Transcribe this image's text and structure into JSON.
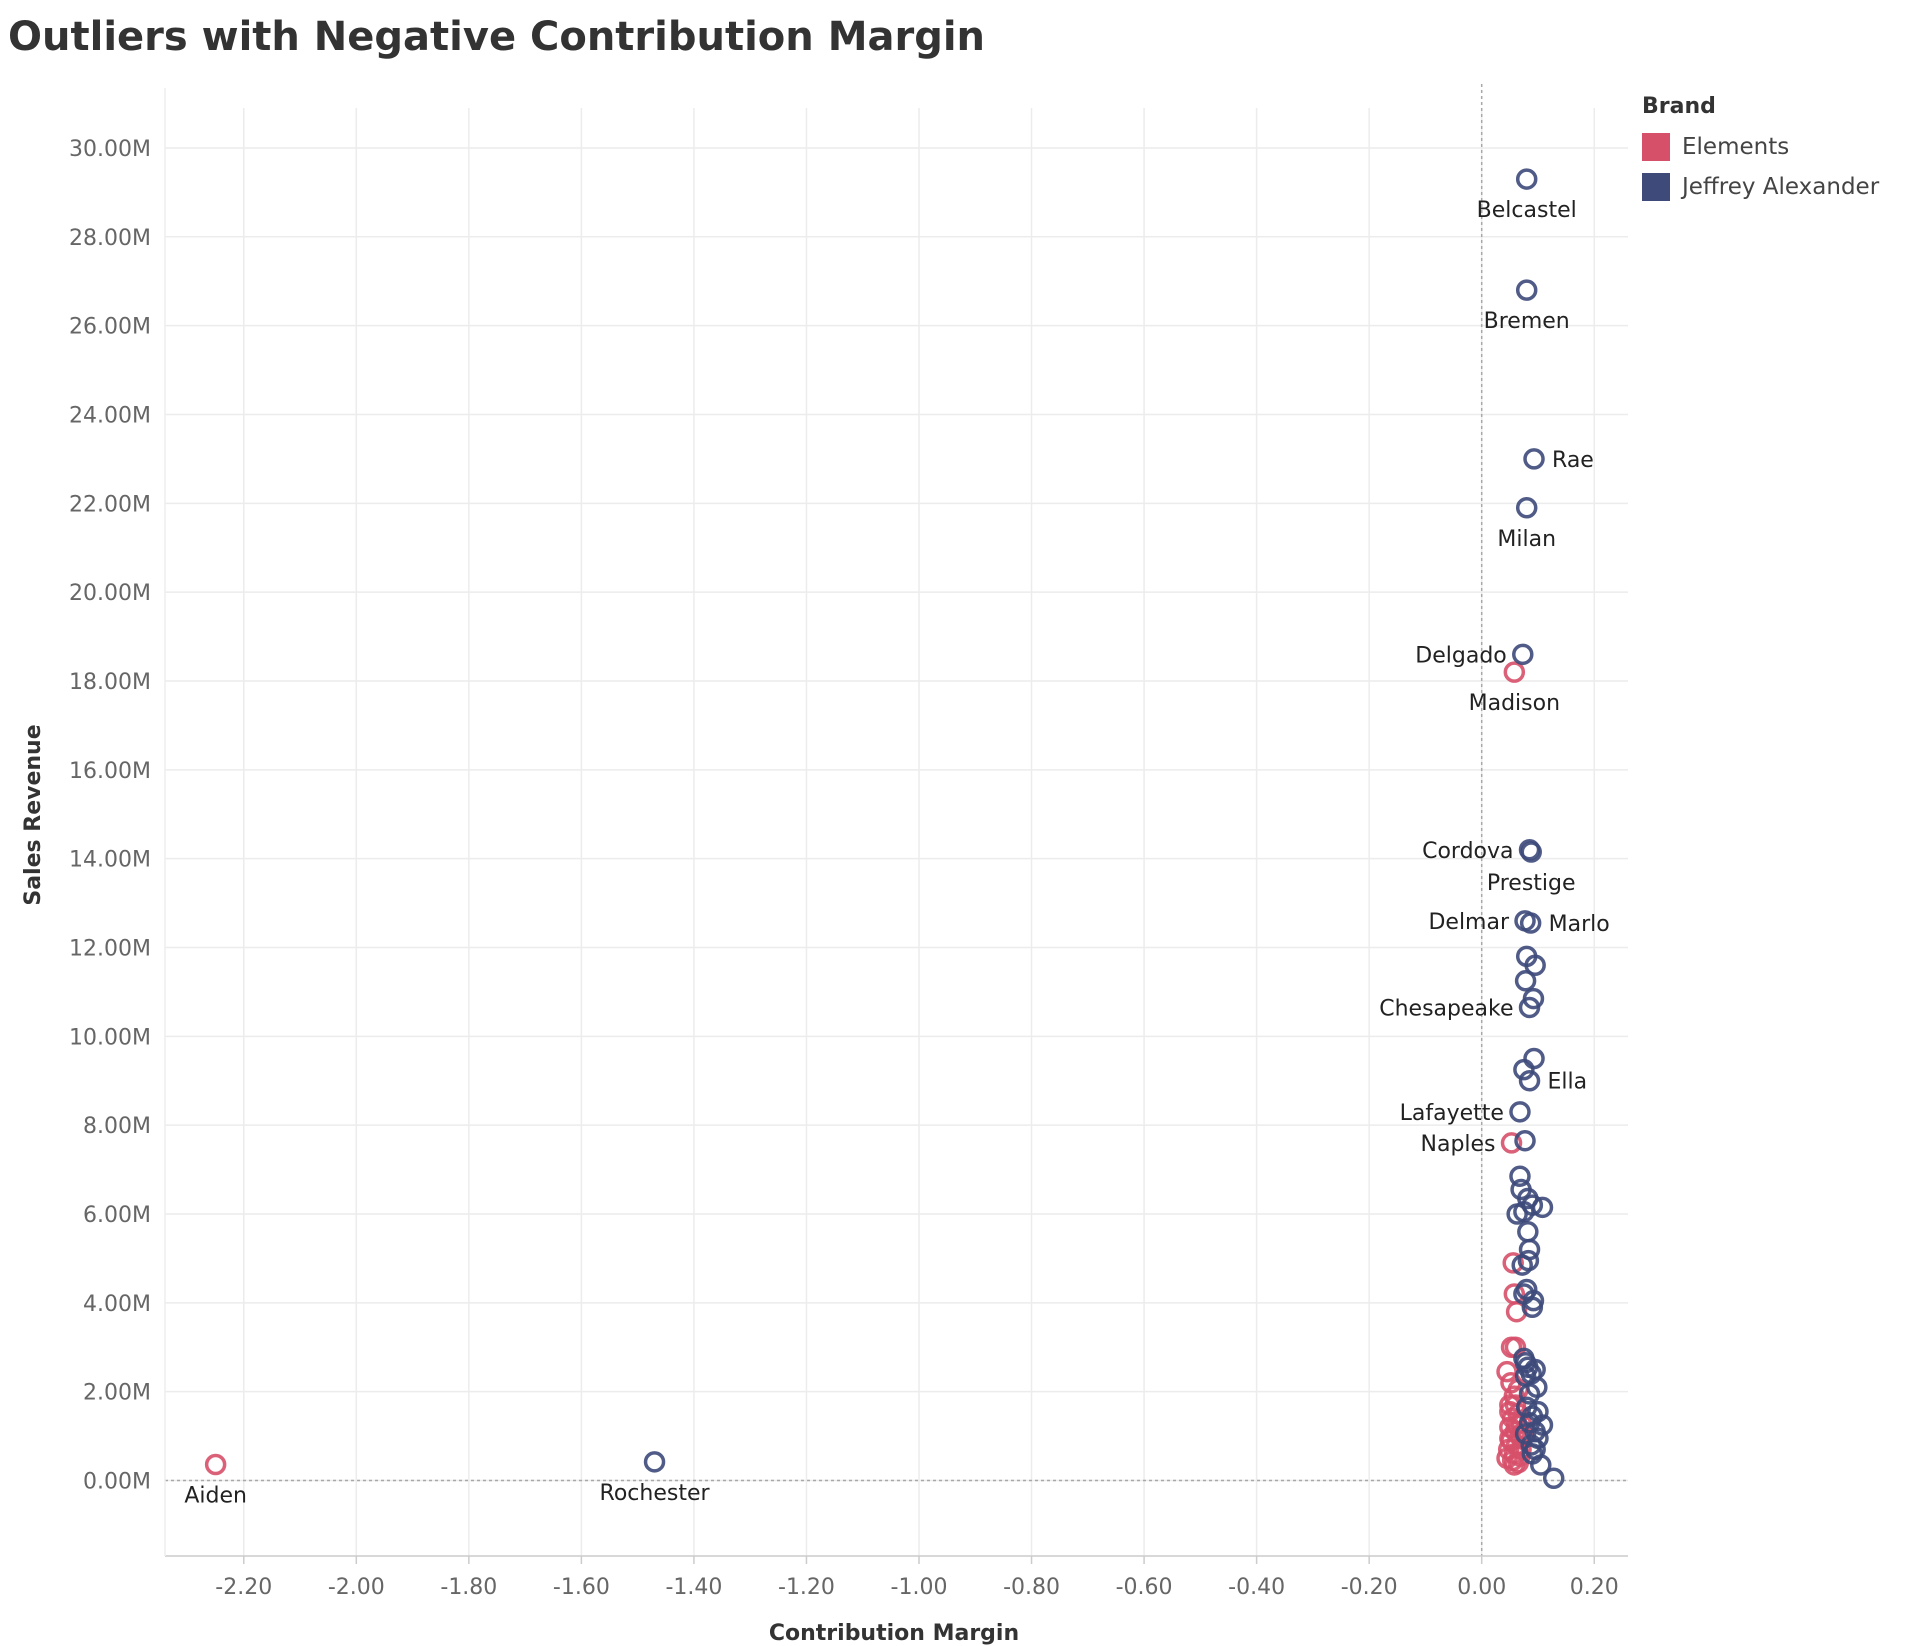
{
  "title": "Outliers with Negative Contribution Margin",
  "legend": {
    "title": "Brand",
    "items": [
      {
        "label": "Elements",
        "color": "#d7506a"
      },
      {
        "label": "Jeffrey Alexander",
        "color": "#3d4a7a"
      }
    ]
  },
  "chart_data": {
    "type": "scatter",
    "title": "Outliers with Negative Contribution Margin",
    "xlabel": "Contribution Margin",
    "ylabel": "Sales Revenue",
    "xlim": [
      -2.34,
      0.26
    ],
    "ylim": [
      -1700000,
      30900000
    ],
    "x_ticks": [
      {
        "value": -2.2,
        "label": "-2.20"
      },
      {
        "value": -2.0,
        "label": "-2.00"
      },
      {
        "value": -1.8,
        "label": "-1.80"
      },
      {
        "value": -1.6,
        "label": "-1.60"
      },
      {
        "value": -1.4,
        "label": "-1.40"
      },
      {
        "value": -1.2,
        "label": "-1.20"
      },
      {
        "value": -1.0,
        "label": "-1.00"
      },
      {
        "value": -0.8,
        "label": "-0.80"
      },
      {
        "value": -0.6,
        "label": "-0.60"
      },
      {
        "value": -0.4,
        "label": "-0.40"
      },
      {
        "value": -0.2,
        "label": "-0.20"
      },
      {
        "value": 0.0,
        "label": "0.00"
      },
      {
        "value": 0.2,
        "label": "0.20"
      }
    ],
    "y_ticks": [
      {
        "value": 0,
        "label": "0.00M"
      },
      {
        "value": 2000000,
        "label": "2.00M"
      },
      {
        "value": 4000000,
        "label": "4.00M"
      },
      {
        "value": 6000000,
        "label": "6.00M"
      },
      {
        "value": 8000000,
        "label": "8.00M"
      },
      {
        "value": 10000000,
        "label": "10.00M"
      },
      {
        "value": 12000000,
        "label": "12.00M"
      },
      {
        "value": 14000000,
        "label": "14.00M"
      },
      {
        "value": 16000000,
        "label": "16.00M"
      },
      {
        "value": 18000000,
        "label": "18.00M"
      },
      {
        "value": 20000000,
        "label": "20.00M"
      },
      {
        "value": 22000000,
        "label": "22.00M"
      },
      {
        "value": 24000000,
        "label": "24.00M"
      },
      {
        "value": 26000000,
        "label": "26.00M"
      },
      {
        "value": 28000000,
        "label": "28.00M"
      },
      {
        "value": 30000000,
        "label": "30.00M"
      }
    ],
    "grid": true,
    "legend_position": "top-right",
    "reference_lines": {
      "x": 0,
      "y": 0
    },
    "series": [
      {
        "name": "Elements",
        "color": "#d7506a",
        "points": [
          {
            "x": -2.25,
            "y": 360000,
            "label": "Aiden",
            "label_pos": "below"
          },
          {
            "x": 0.058,
            "y": 18200000,
            "label": "Madison",
            "label_pos": "below"
          },
          {
            "x": 0.053,
            "y": 7600000,
            "label": "Naples",
            "label_pos": "left"
          },
          {
            "x": 0.056,
            "y": 4900000
          },
          {
            "x": 0.058,
            "y": 4200000
          },
          {
            "x": 0.062,
            "y": 3800000
          },
          {
            "x": 0.053,
            "y": 3000000
          },
          {
            "x": 0.06,
            "y": 3000000
          },
          {
            "x": 0.045,
            "y": 2450000
          },
          {
            "x": 0.052,
            "y": 2200000
          },
          {
            "x": 0.065,
            "y": 2050000
          },
          {
            "x": 0.058,
            "y": 1900000
          },
          {
            "x": 0.06,
            "y": 1700000
          },
          {
            "x": 0.05,
            "y": 1550000
          },
          {
            "x": 0.055,
            "y": 1400000
          },
          {
            "x": 0.065,
            "y": 1500000
          },
          {
            "x": 0.07,
            "y": 1300000
          },
          {
            "x": 0.05,
            "y": 1200000
          },
          {
            "x": 0.06,
            "y": 1100000
          },
          {
            "x": 0.068,
            "y": 1000000
          },
          {
            "x": 0.052,
            "y": 900000
          },
          {
            "x": 0.062,
            "y": 800000
          },
          {
            "x": 0.048,
            "y": 700000
          },
          {
            "x": 0.058,
            "y": 600000
          },
          {
            "x": 0.045,
            "y": 500000
          },
          {
            "x": 0.055,
            "y": 450000
          },
          {
            "x": 0.065,
            "y": 400000
          },
          {
            "x": 0.07,
            "y": 700000
          },
          {
            "x": 0.075,
            "y": 1000000
          },
          {
            "x": 0.05,
            "y": 1700000
          },
          {
            "x": 0.062,
            "y": 1250000
          },
          {
            "x": 0.05,
            "y": 950000
          },
          {
            "x": 0.058,
            "y": 350000
          },
          {
            "x": 0.068,
            "y": 550000
          }
        ]
      },
      {
        "name": "Jeffrey Alexander",
        "color": "#3d4a7a",
        "points": [
          {
            "x": -1.47,
            "y": 420000,
            "label": "Rochester",
            "label_pos": "below"
          },
          {
            "x": 0.08,
            "y": 29300000,
            "label": "Belcastel",
            "label_pos": "below"
          },
          {
            "x": 0.08,
            "y": 26800000,
            "label": "Bremen",
            "label_pos": "below"
          },
          {
            "x": 0.093,
            "y": 23000000,
            "label": "Rae",
            "label_pos": "right"
          },
          {
            "x": 0.08,
            "y": 21900000,
            "label": "Milan",
            "label_pos": "below"
          },
          {
            "x": 0.073,
            "y": 18600000,
            "label": "Delgado",
            "label_pos": "left"
          },
          {
            "x": 0.085,
            "y": 14200000,
            "label": "Cordova",
            "label_pos": "left"
          },
          {
            "x": 0.088,
            "y": 14150000,
            "label": "Prestige",
            "label_pos": "below"
          },
          {
            "x": 0.077,
            "y": 12600000,
            "label": "Delmar",
            "label_pos": "left"
          },
          {
            "x": 0.087,
            "y": 12550000,
            "label": "Marlo",
            "label_pos": "right"
          },
          {
            "x": 0.08,
            "y": 11800000
          },
          {
            "x": 0.095,
            "y": 11600000
          },
          {
            "x": 0.078,
            "y": 11250000
          },
          {
            "x": 0.092,
            "y": 10850000
          },
          {
            "x": 0.085,
            "y": 10650000,
            "label": "Chesapeake",
            "label_pos": "left"
          },
          {
            "x": 0.093,
            "y": 9500000
          },
          {
            "x": 0.075,
            "y": 9250000
          },
          {
            "x": 0.085,
            "y": 9000000,
            "label": "Ella",
            "label_pos": "right"
          },
          {
            "x": 0.068,
            "y": 8300000,
            "label": "Lafayette",
            "label_pos": "left"
          },
          {
            "x": 0.077,
            "y": 7650000
          },
          {
            "x": 0.068,
            "y": 6850000
          },
          {
            "x": 0.07,
            "y": 6550000
          },
          {
            "x": 0.082,
            "y": 6350000
          },
          {
            "x": 0.09,
            "y": 6200000
          },
          {
            "x": 0.108,
            "y": 6150000
          },
          {
            "x": 0.075,
            "y": 6050000
          },
          {
            "x": 0.063,
            "y": 6000000
          },
          {
            "x": 0.082,
            "y": 5600000
          },
          {
            "x": 0.085,
            "y": 5200000
          },
          {
            "x": 0.083,
            "y": 4950000
          },
          {
            "x": 0.072,
            "y": 4850000
          },
          {
            "x": 0.08,
            "y": 4300000
          },
          {
            "x": 0.075,
            "y": 4200000
          },
          {
            "x": 0.09,
            "y": 3900000
          },
          {
            "x": 0.092,
            "y": 4050000
          },
          {
            "x": 0.075,
            "y": 2750000
          },
          {
            "x": 0.078,
            "y": 2650000
          },
          {
            "x": 0.082,
            "y": 2550000
          },
          {
            "x": 0.095,
            "y": 2500000
          },
          {
            "x": 0.088,
            "y": 2400000
          },
          {
            "x": 0.078,
            "y": 2350000
          },
          {
            "x": 0.098,
            "y": 2100000
          },
          {
            "x": 0.085,
            "y": 1950000
          },
          {
            "x": 0.1,
            "y": 1550000
          },
          {
            "x": 0.09,
            "y": 1450000
          },
          {
            "x": 0.108,
            "y": 1250000
          },
          {
            "x": 0.095,
            "y": 1100000
          },
          {
            "x": 0.1,
            "y": 950000
          },
          {
            "x": 0.088,
            "y": 800000
          },
          {
            "x": 0.095,
            "y": 700000
          },
          {
            "x": 0.105,
            "y": 350000
          },
          {
            "x": 0.128,
            "y": 50000
          },
          {
            "x": 0.08,
            "y": 1650000
          },
          {
            "x": 0.085,
            "y": 1300000
          },
          {
            "x": 0.09,
            "y": 600000
          },
          {
            "x": 0.078,
            "y": 1050000
          }
        ]
      }
    ]
  }
}
